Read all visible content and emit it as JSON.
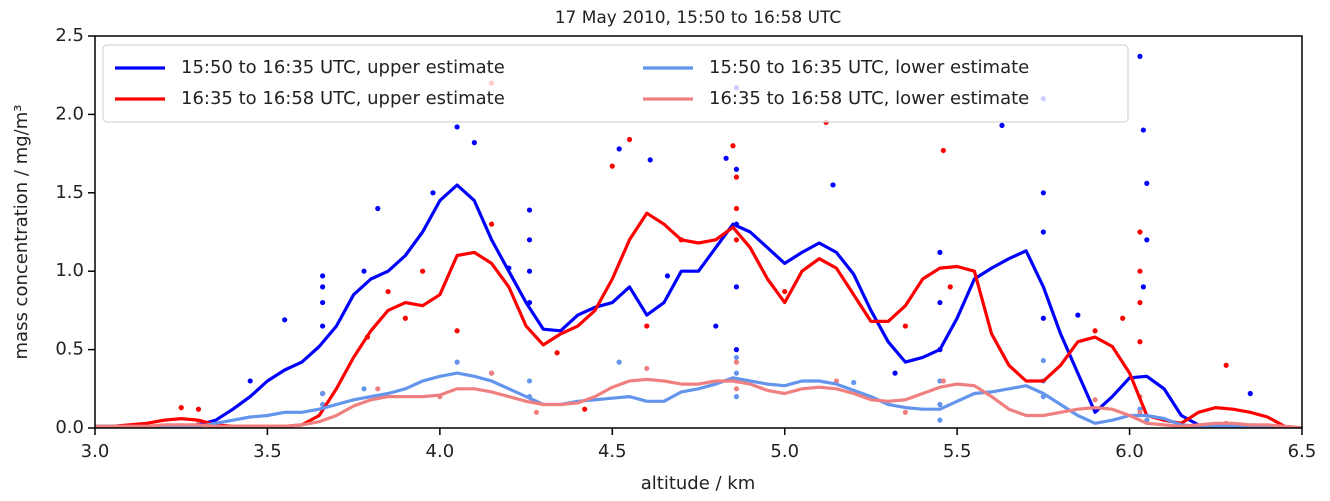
{
  "chart_data": {
    "type": "line",
    "title": "17 May 2010, 15:50 to 16:58 UTC",
    "xlabel": "altitude / km",
    "ylabel": "mass concentration / mg/m³",
    "xlim": [
      3.0,
      6.5
    ],
    "ylim": [
      0.0,
      2.5
    ],
    "xticks": [
      {
        "value": 3.0,
        "label": "3.0"
      },
      3.5,
      {
        "value": 4.0,
        "label": "4.0"
      },
      4.5,
      {
        "value": 5.0,
        "label": "5.0"
      },
      5.5,
      {
        "value": 6.0,
        "label": "6.0"
      },
      6.5
    ],
    "yticks": [
      {
        "value": 0.0,
        "label": "0.0"
      },
      0.5,
      {
        "value": 1.0,
        "label": "1.0"
      },
      1.5,
      {
        "value": 2.0,
        "label": "2.0"
      },
      2.5
    ],
    "legend": "upper left",
    "legend_columns": 2,
    "x": [
      3.0,
      3.05,
      3.1,
      3.15,
      3.2,
      3.25,
      3.3,
      3.35,
      3.4,
      3.45,
      3.5,
      3.55,
      3.6,
      3.65,
      3.7,
      3.75,
      3.8,
      3.85,
      3.9,
      3.95,
      4.0,
      4.05,
      4.1,
      4.15,
      4.2,
      4.25,
      4.3,
      4.35,
      4.4,
      4.45,
      4.5,
      4.55,
      4.6,
      4.65,
      4.7,
      4.75,
      4.8,
      4.85,
      4.9,
      4.95,
      5.0,
      5.05,
      5.1,
      5.15,
      5.2,
      5.25,
      5.3,
      5.35,
      5.4,
      5.45,
      5.5,
      5.55,
      5.6,
      5.65,
      5.7,
      5.75,
      5.8,
      5.85,
      5.9,
      5.95,
      6.0,
      6.05,
      6.1,
      6.15,
      6.2,
      6.25,
      6.3,
      6.35,
      6.4,
      6.45,
      6.5
    ],
    "series": [
      {
        "name": "15:50 to 16:35 UTC, upper estimate",
        "color": "#0000ff",
        "values": [
          0.01,
          0.01,
          0.01,
          0.01,
          0.01,
          0.01,
          0.02,
          0.05,
          0.12,
          0.2,
          0.3,
          0.37,
          0.42,
          0.52,
          0.65,
          0.85,
          0.95,
          1.0,
          1.1,
          1.25,
          1.45,
          1.55,
          1.45,
          1.2,
          1.0,
          0.8,
          0.63,
          0.62,
          0.72,
          0.77,
          0.8,
          0.9,
          0.72,
          0.8,
          1.0,
          1.0,
          1.15,
          1.3,
          1.25,
          1.15,
          1.05,
          1.12,
          1.18,
          1.12,
          0.98,
          0.75,
          0.55,
          0.42,
          0.45,
          0.5,
          0.7,
          0.95,
          1.02,
          1.08,
          1.13,
          0.9,
          0.6,
          0.35,
          0.1,
          0.2,
          0.32,
          0.33,
          0.25,
          0.08,
          0.02,
          0.01,
          0.01,
          0.01,
          0.0,
          0.0,
          0.0
        ]
      },
      {
        "name": "16:35 to 16:58 UTC, upper estimate",
        "color": "#ff0000",
        "values": [
          0.01,
          0.01,
          0.02,
          0.03,
          0.05,
          0.06,
          0.05,
          0.02,
          0.01,
          0.01,
          0.01,
          0.01,
          0.02,
          0.08,
          0.25,
          0.45,
          0.62,
          0.75,
          0.8,
          0.78,
          0.85,
          1.1,
          1.12,
          1.05,
          0.9,
          0.65,
          0.53,
          0.6,
          0.65,
          0.75,
          0.95,
          1.2,
          1.37,
          1.3,
          1.2,
          1.18,
          1.2,
          1.28,
          1.15,
          0.95,
          0.8,
          1.0,
          1.08,
          1.02,
          0.85,
          0.68,
          0.68,
          0.78,
          0.95,
          1.02,
          1.03,
          1.0,
          0.6,
          0.4,
          0.3,
          0.3,
          0.4,
          0.55,
          0.58,
          0.52,
          0.35,
          0.08,
          0.05,
          0.03,
          0.1,
          0.13,
          0.12,
          0.1,
          0.07,
          0.01,
          0.0
        ]
      },
      {
        "name": "15:50 to 16:35 UTC, lower estimate",
        "color": "#6495ed",
        "values": [
          0.01,
          0.01,
          0.01,
          0.01,
          0.01,
          0.01,
          0.01,
          0.03,
          0.05,
          0.07,
          0.08,
          0.1,
          0.1,
          0.12,
          0.15,
          0.18,
          0.2,
          0.22,
          0.25,
          0.3,
          0.33,
          0.35,
          0.33,
          0.3,
          0.25,
          0.2,
          0.15,
          0.15,
          0.17,
          0.18,
          0.19,
          0.2,
          0.17,
          0.17,
          0.23,
          0.25,
          0.28,
          0.32,
          0.3,
          0.28,
          0.27,
          0.3,
          0.3,
          0.28,
          0.24,
          0.2,
          0.15,
          0.13,
          0.12,
          0.12,
          0.17,
          0.22,
          0.23,
          0.25,
          0.27,
          0.22,
          0.15,
          0.08,
          0.03,
          0.05,
          0.08,
          0.08,
          0.06,
          0.02,
          0.01,
          0.01,
          0.01,
          0.01,
          0.0,
          0.0,
          0.0
        ]
      },
      {
        "name": "16:35 to 16:58 UTC, lower estimate",
        "color": "#f08080",
        "values": [
          0.01,
          0.01,
          0.01,
          0.01,
          0.02,
          0.02,
          0.02,
          0.01,
          0.01,
          0.01,
          0.01,
          0.01,
          0.02,
          0.04,
          0.08,
          0.14,
          0.18,
          0.2,
          0.2,
          0.2,
          0.21,
          0.25,
          0.25,
          0.23,
          0.2,
          0.17,
          0.15,
          0.15,
          0.16,
          0.2,
          0.26,
          0.3,
          0.31,
          0.3,
          0.28,
          0.28,
          0.3,
          0.3,
          0.28,
          0.24,
          0.22,
          0.25,
          0.26,
          0.25,
          0.22,
          0.18,
          0.17,
          0.18,
          0.22,
          0.26,
          0.28,
          0.27,
          0.2,
          0.12,
          0.08,
          0.08,
          0.1,
          0.12,
          0.13,
          0.12,
          0.08,
          0.03,
          0.02,
          0.01,
          0.02,
          0.03,
          0.03,
          0.02,
          0.02,
          0.01,
          0.0
        ]
      }
    ],
    "scatter": [
      {
        "color": "#0000ff",
        "x": [
          3.66,
          3.66,
          3.66,
          3.66,
          3.55,
          3.45,
          3.78,
          3.82,
          3.98,
          4.05,
          4.1,
          4.2,
          4.26,
          4.26,
          4.26,
          4.26,
          4.52,
          4.61,
          4.66,
          4.83,
          4.86,
          4.86,
          4.86,
          4.86,
          4.86,
          5.14,
          5.45,
          5.45,
          5.45,
          5.63,
          5.75,
          5.75,
          5.75,
          5.75,
          6.03,
          6.04,
          6.05,
          6.05,
          6.04,
          6.35,
          5.32,
          4.8,
          5.85
        ],
        "values": [
          0.97,
          0.9,
          0.8,
          0.65,
          0.69,
          0.3,
          1.0,
          1.4,
          1.5,
          1.92,
          1.82,
          1.02,
          1.39,
          1.2,
          1.0,
          0.8,
          1.78,
          1.71,
          0.97,
          1.72,
          2.17,
          1.65,
          1.3,
          0.9,
          0.5,
          1.55,
          1.12,
          0.8,
          0.5,
          1.93,
          2.1,
          1.5,
          1.25,
          0.7,
          2.37,
          1.9,
          1.56,
          1.2,
          0.9,
          0.22,
          0.35,
          0.65,
          0.72
        ]
      },
      {
        "color": "#ff0000",
        "x": [
          3.25,
          3.3,
          3.66,
          3.79,
          3.85,
          3.9,
          3.95,
          4.05,
          4.15,
          4.15,
          4.34,
          4.5,
          4.55,
          4.6,
          4.7,
          4.85,
          4.86,
          4.86,
          4.86,
          5.0,
          5.12,
          5.35,
          5.46,
          5.48,
          5.9,
          6.03,
          6.03,
          6.03,
          6.03,
          5.98,
          6.28,
          4.42
        ],
        "values": [
          0.13,
          0.12,
          0.22,
          0.58,
          0.87,
          0.7,
          1.0,
          0.62,
          2.2,
          1.3,
          0.48,
          1.67,
          1.84,
          0.65,
          1.2,
          1.8,
          1.4,
          1.2,
          1.6,
          0.87,
          1.95,
          0.65,
          1.77,
          0.9,
          0.62,
          1.25,
          1.0,
          0.8,
          0.55,
          0.7,
          0.4,
          0.12
        ]
      },
      {
        "color": "#6495ed",
        "x": [
          3.66,
          3.66,
          3.78,
          4.05,
          4.26,
          4.26,
          4.52,
          4.86,
          4.86,
          4.86,
          5.2,
          5.45,
          5.45,
          5.45,
          5.75,
          5.75,
          5.75,
          6.03,
          6.05,
          4.15
        ],
        "values": [
          0.22,
          0.15,
          0.25,
          0.42,
          0.3,
          0.2,
          0.42,
          0.45,
          0.35,
          0.2,
          0.29,
          0.3,
          0.15,
          0.05,
          0.43,
          0.3,
          0.2,
          0.12,
          0.05,
          0.35
        ]
      },
      {
        "color": "#f08080",
        "x": [
          3.3,
          3.82,
          4.0,
          4.15,
          4.28,
          4.6,
          4.86,
          4.86,
          4.86,
          5.15,
          5.35,
          5.46,
          5.9,
          6.03,
          6.03,
          6.28
        ],
        "values": [
          0.03,
          0.25,
          0.2,
          0.35,
          0.1,
          0.38,
          0.42,
          0.3,
          0.25,
          0.3,
          0.1,
          0.3,
          0.18,
          0.2,
          0.1,
          0.03
        ]
      }
    ]
  }
}
